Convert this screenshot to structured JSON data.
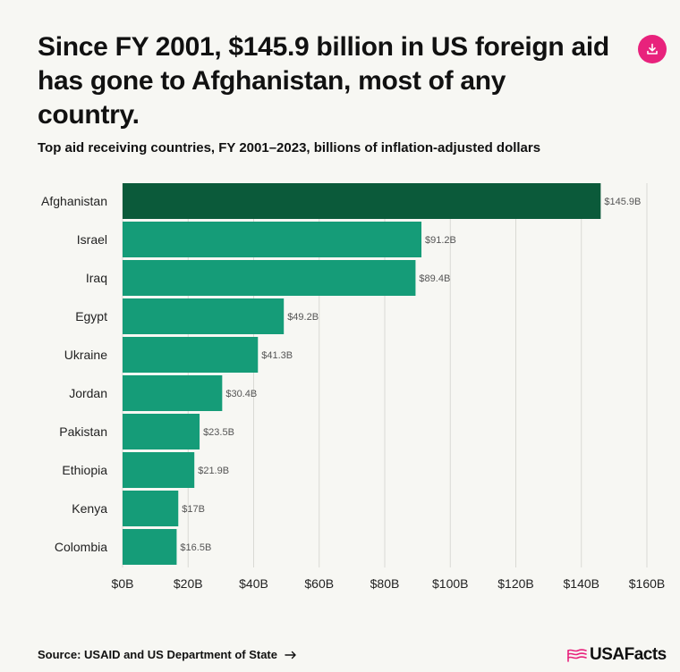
{
  "title": "Since FY 2001, $145.9 billion in US foreign aid has gone to Afghanistan, most of any country.",
  "subtitle": "Top aid receiving countries, FY 2001–2023, billions of inflation-adjusted dollars",
  "download": {
    "icon": "download-icon"
  },
  "footer": {
    "source": "Source: USAID and US Department of State",
    "logo": "USAFacts"
  },
  "colors": {
    "highlight": "#0b5a3a",
    "bar": "#159c78",
    "accent": "#e8227c",
    "grid": "#d9d9d4",
    "label": "#555555"
  },
  "chart_data": {
    "type": "bar",
    "orientation": "horizontal",
    "title": "Top aid receiving countries, FY 2001–2023, billions of inflation-adjusted dollars",
    "categories": [
      "Afghanistan",
      "Israel",
      "Iraq",
      "Egypt",
      "Ukraine",
      "Jordan",
      "Pakistan",
      "Ethiopia",
      "Kenya",
      "Colombia"
    ],
    "values": [
      145.9,
      91.2,
      89.4,
      49.2,
      41.3,
      30.4,
      23.5,
      21.9,
      17,
      16.5
    ],
    "value_labels": [
      "$145.9B",
      "$91.2B",
      "$89.4B",
      "$49.2B",
      "$41.3B",
      "$30.4B",
      "$23.5B",
      "$21.9B",
      "$17B",
      "$16.5B"
    ],
    "xlim": [
      0,
      160
    ],
    "xticks": [
      0,
      20,
      40,
      60,
      80,
      100,
      120,
      140,
      160
    ],
    "xtick_labels": [
      "$0B",
      "$20B",
      "$40B",
      "$60B",
      "$80B",
      "$100B",
      "$120B",
      "$140B",
      "$160B"
    ],
    "xlabel": "",
    "ylabel": "",
    "grid": true,
    "highlight_index": 0
  }
}
